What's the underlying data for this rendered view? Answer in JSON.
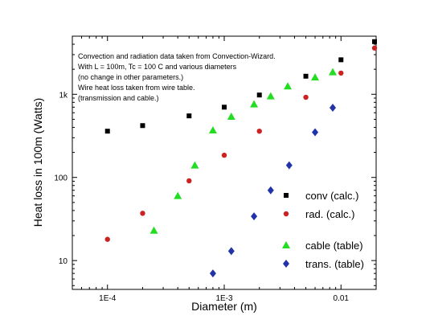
{
  "chart_data": {
    "type": "scatter",
    "xlabel": "Diameter (m)",
    "ylabel": "Heat loss in 100m (Watts)",
    "x_scale": "log",
    "y_scale": "log",
    "xlim": [
      5e-05,
      0.02
    ],
    "ylim": [
      4.5,
      5000
    ],
    "x_ticks": [
      {
        "value": 0.0001,
        "label": "1E-4"
      },
      {
        "value": 0.001,
        "label": "1E-3"
      },
      {
        "value": 0.01,
        "label": "0.01"
      }
    ],
    "y_ticks": [
      {
        "value": 10,
        "label": "10"
      },
      {
        "value": 100,
        "label": "100"
      },
      {
        "value": 1000,
        "label": "1k"
      }
    ],
    "annotation": [
      "Convection and radiation data taken from Convection-Wizard.",
      "With L = 100m, Tc = 100 C and various diameters",
      "(no change in other parameters.)",
      "Wire heat loss taken from wire table.",
      "(transmission and cable.)"
    ],
    "legend_position": "bottom-right",
    "series": [
      {
        "name": "conv (calc.)",
        "marker": "square",
        "color": "#000000",
        "points": [
          [
            0.0001,
            360
          ],
          [
            0.0002,
            420
          ],
          [
            0.0005,
            550
          ],
          [
            0.001,
            700
          ],
          [
            0.002,
            980
          ],
          [
            0.005,
            1650
          ],
          [
            0.01,
            2600
          ],
          [
            0.02,
            4300
          ]
        ]
      },
      {
        "name": "rad. (calc.)",
        "marker": "circle",
        "color": "#cc2222",
        "points": [
          [
            0.0001,
            18
          ],
          [
            0.0002,
            37
          ],
          [
            0.0005,
            91
          ],
          [
            0.001,
            185
          ],
          [
            0.002,
            360
          ],
          [
            0.005,
            920
          ],
          [
            0.01,
            1800
          ],
          [
            0.02,
            3600
          ]
        ]
      },
      {
        "name": "cable (table)",
        "marker": "triangle",
        "color": "#22dd22",
        "points": [
          [
            0.00025,
            23
          ],
          [
            0.0004,
            60
          ],
          [
            0.00056,
            140
          ],
          [
            0.0008,
            370
          ],
          [
            0.00115,
            540
          ],
          [
            0.0018,
            760
          ],
          [
            0.0025,
            950
          ],
          [
            0.0035,
            1250
          ],
          [
            0.006,
            1600
          ],
          [
            0.0085,
            1850
          ]
        ]
      },
      {
        "name": "trans. (table)",
        "marker": "diamond",
        "color": "#2233aa",
        "points": [
          [
            0.0008,
            7
          ],
          [
            0.00115,
            13
          ],
          [
            0.0018,
            34
          ],
          [
            0.0025,
            70
          ],
          [
            0.0036,
            140
          ],
          [
            0.006,
            350
          ],
          [
            0.0085,
            690
          ]
        ]
      }
    ]
  }
}
